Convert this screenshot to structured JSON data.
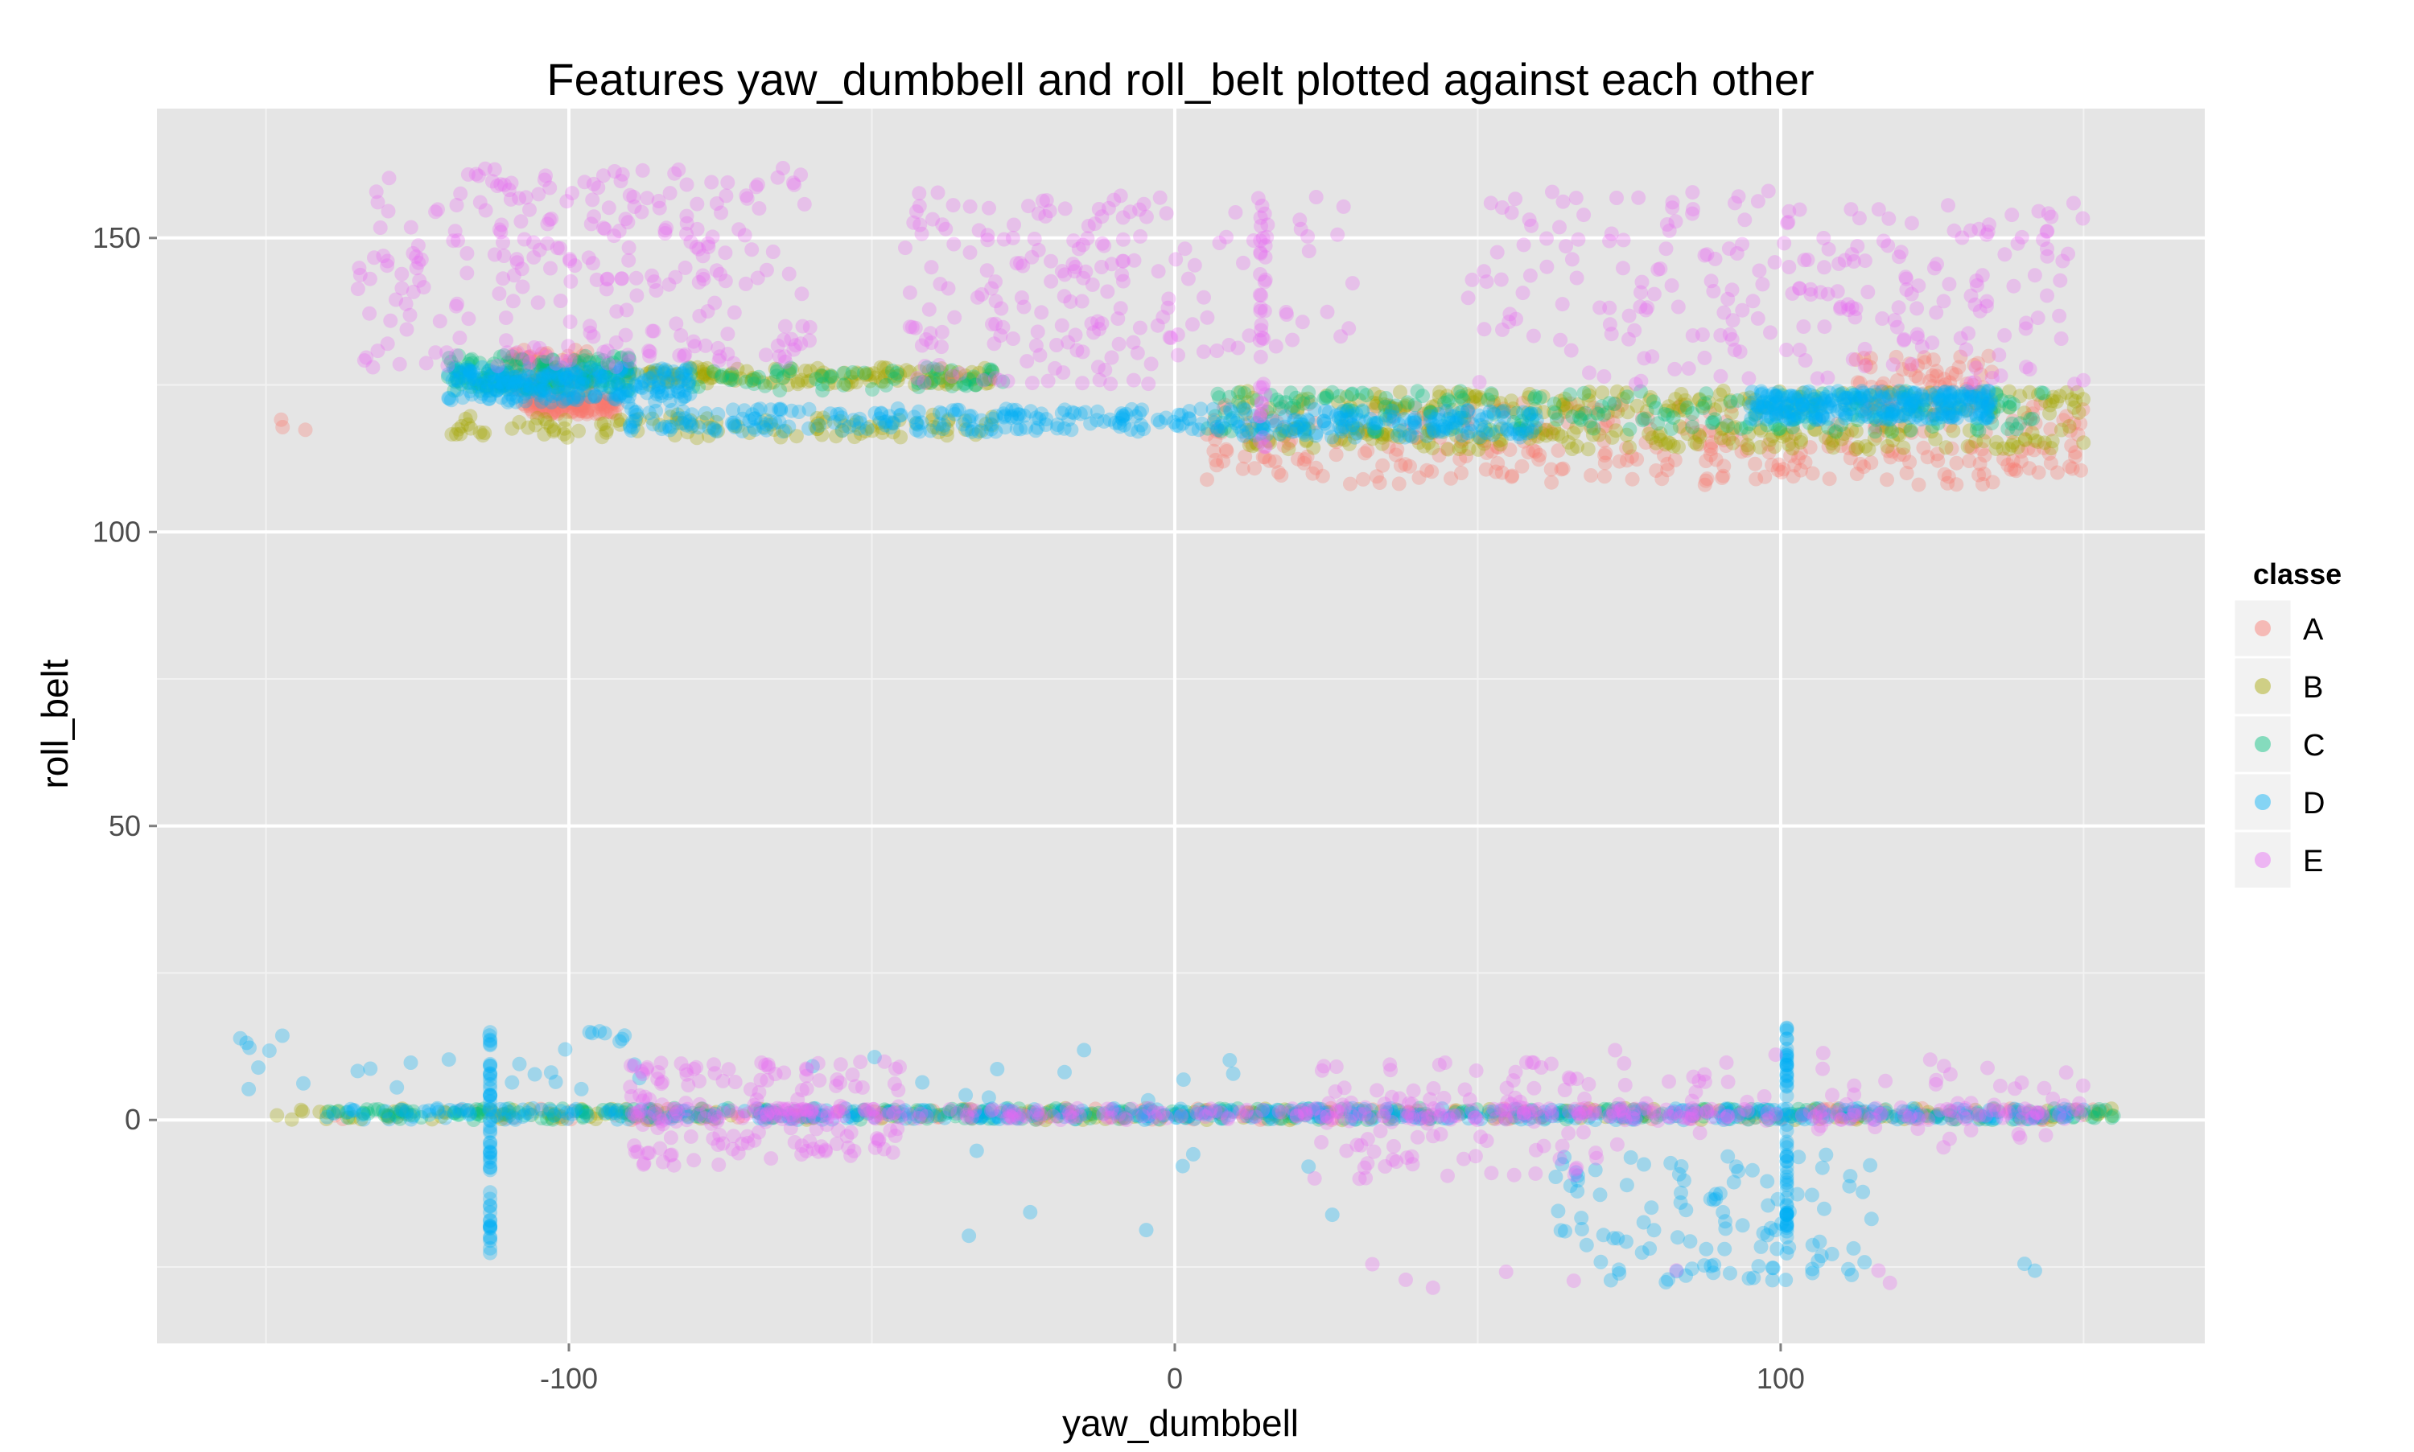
{
  "chart_data": {
    "type": "scatter",
    "title": "Features  yaw_dumbbell  and  roll_belt  plotted against each other",
    "xlabel": "yaw_dumbbell",
    "ylabel": "roll_belt",
    "xlim": [
      -168,
      170
    ],
    "ylim": [
      -38,
      172
    ],
    "x_ticks": [
      -100,
      0,
      100
    ],
    "x_tick_labels": [
      "-100",
      "0",
      "100"
    ],
    "y_ticks": [
      0,
      50,
      100,
      150
    ],
    "y_tick_labels": [
      "0",
      "50",
      "100",
      "150"
    ],
    "grid": true,
    "legend": {
      "title": "classe",
      "position": "right"
    },
    "point_alpha": 0.3,
    "series": [
      {
        "name": "A",
        "color": "#F8766D",
        "clusters": [
          {
            "x": [
              -108,
              -92
            ],
            "y": [
              120,
              123
            ],
            "n": 110
          },
          {
            "x": [
              -110,
              -96
            ],
            "y": [
              124,
              131
            ],
            "n": 90
          },
          {
            "x": [
              5,
              150
            ],
            "y": [
              108,
              122
            ],
            "n": 330
          },
          {
            "x": [
              -150,
              -140
            ],
            "y": [
              113,
              121
            ],
            "n": 3
          },
          {
            "x": [
              112,
              135
            ],
            "y": [
              120,
              130
            ],
            "n": 70
          },
          {
            "x": [
              -140,
              155
            ],
            "y": [
              0,
              2
            ],
            "n": 140
          }
        ]
      },
      {
        "name": "B",
        "color": "#A3A500",
        "clusters": [
          {
            "x": [
              -92,
              -30
            ],
            "y": [
              125,
              128
            ],
            "n": 150
          },
          {
            "x": [
              -120,
              -30
            ],
            "y": [
              116,
              120
            ],
            "n": 110
          },
          {
            "x": [
              10,
              150
            ],
            "y": [
              120,
              124
            ],
            "n": 170
          },
          {
            "x": [
              10,
              150
            ],
            "y": [
              114,
              118
            ],
            "n": 190
          },
          {
            "x": [
              -150,
              155
            ],
            "y": [
              0,
              2
            ],
            "n": 230
          }
        ]
      },
      {
        "name": "C",
        "color": "#00BF7D",
        "clusters": [
          {
            "x": [
              -120,
              -90
            ],
            "y": [
              124,
              130
            ],
            "n": 170
          },
          {
            "x": [
              -80,
              -28
            ],
            "y": [
              124,
              128
            ],
            "n": 60
          },
          {
            "x": [
              5,
              145
            ],
            "y": [
              117,
              124
            ],
            "n": 220
          },
          {
            "x": [
              -140,
              155
            ],
            "y": [
              0,
              2
            ],
            "n": 330
          }
        ]
      },
      {
        "name": "D",
        "color": "#00B0F6",
        "clusters": [
          {
            "x": [
              -120,
              -80
            ],
            "y": [
              122,
              128
            ],
            "n": 240
          },
          {
            "x": [
              -90,
              10
            ],
            "y": [
              117,
              121
            ],
            "n": 210
          },
          {
            "x": [
              10,
              60
            ],
            "y": [
              116,
              121
            ],
            "n": 150
          },
          {
            "x": [
              95,
              135
            ],
            "y": [
              119,
              124
            ],
            "n": 270
          },
          {
            "x": [
              -140,
              150
            ],
            "y": [
              0,
              2
            ],
            "n": 420
          },
          {
            "x": [
              -113,
              -113
            ],
            "y": [
              -23,
              15
            ],
            "n": 55
          },
          {
            "x": [
              101,
              101
            ],
            "y": [
              -23,
              16
            ],
            "n": 60
          },
          {
            "x": [
              60,
              115
            ],
            "y": [
              -28,
              -5
            ],
            "n": 110
          },
          {
            "x": [
              -155,
              -85
            ],
            "y": [
              5,
              16
            ],
            "n": 30
          },
          {
            "x": [
              -60,
              20
            ],
            "y": [
              3,
              12
            ],
            "n": 12
          },
          {
            "x": [
              -100,
              90
            ],
            "y": [
              -20,
              -5
            ],
            "n": 8
          },
          {
            "x": [
              138,
              142
            ],
            "y": [
              -26,
              -22
            ],
            "n": 2
          }
        ]
      },
      {
        "name": "E",
        "color": "#E76BF3",
        "clusters": [
          {
            "x": [
              -135,
              -60
            ],
            "y": [
              128,
              162
            ],
            "n": 270
          },
          {
            "x": [
              -45,
              0
            ],
            "y": [
              125,
              158
            ],
            "n": 160
          },
          {
            "x": [
              0,
              30
            ],
            "y": [
              130,
              157
            ],
            "n": 40
          },
          {
            "x": [
              14,
              15
            ],
            "y": [
              108,
              158
            ],
            "n": 35
          },
          {
            "x": [
              45,
              100
            ],
            "y": [
              125,
              158
            ],
            "n": 110
          },
          {
            "x": [
              100,
              150
            ],
            "y": [
              125,
              156
            ],
            "n": 130
          },
          {
            "x": [
              -90,
              -45
            ],
            "y": [
              -8,
              10
            ],
            "n": 150
          },
          {
            "x": [
              20,
              70
            ],
            "y": [
              -10,
              10
            ],
            "n": 100
          },
          {
            "x": [
              70,
              150
            ],
            "y": [
              -5,
              12
            ],
            "n": 70
          },
          {
            "x": [
              -90,
              150
            ],
            "y": [
              0,
              2
            ],
            "n": 300
          },
          {
            "x": [
              30,
              130
            ],
            "y": [
              -29,
              -24
            ],
            "n": 8
          }
        ]
      }
    ]
  }
}
